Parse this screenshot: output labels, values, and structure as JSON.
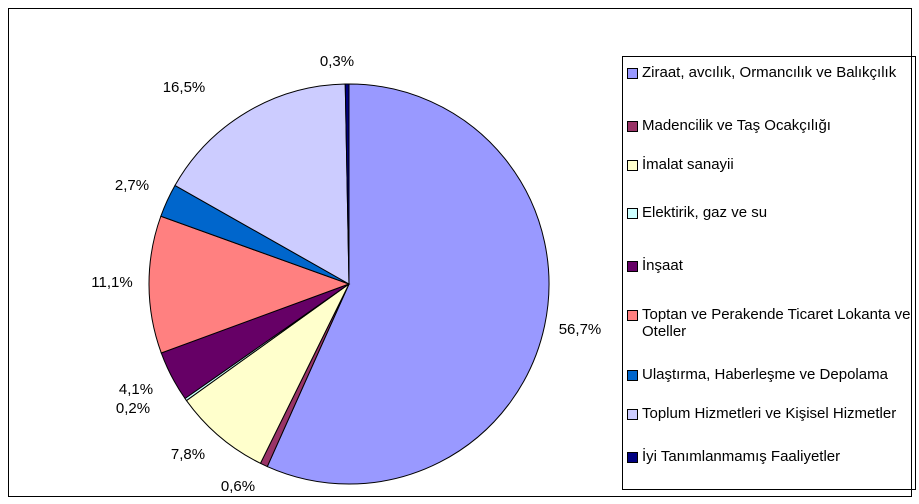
{
  "chart_data": {
    "type": "pie",
    "categories": [
      "Ziraat, avcılık, Ormancılık ve Balıkçılık",
      "Madencilik ve Taş Ocakçılığı",
      "İmalat sanayii",
      "Elektirik, gaz ve su",
      "İnşaat",
      "Toptan ve Perakende Ticaret Lokanta ve Oteller",
      "Ulaştırma, Haberleşme ve Depolama",
      "Toplum Hizmetleri ve Kişisel Hizmetler",
      "İyi Tanımlanmamış Faaliyetler"
    ],
    "values": [
      56.7,
      0.6,
      7.8,
      0.2,
      4.1,
      11.1,
      2.7,
      16.5,
      0.3
    ],
    "value_labels": [
      "56,7%",
      "0,6%",
      "7,8%",
      "0,2%",
      "4,1%",
      "11,1%",
      "2,7%",
      "16,5%",
      "0,3%"
    ],
    "colors": [
      "#9999ff",
      "#993366",
      "#ffffcc",
      "#ccffff",
      "#660066",
      "#ff8080",
      "#0066cc",
      "#ccccff",
      "#000080"
    ],
    "legend": "right"
  }
}
